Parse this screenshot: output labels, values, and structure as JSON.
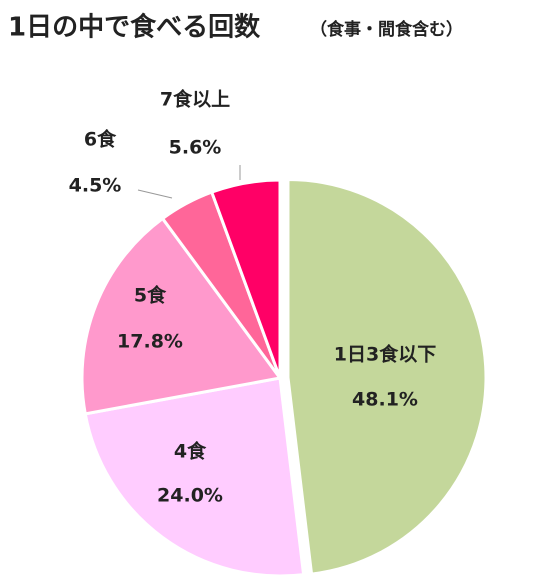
{
  "chart_data": {
    "type": "pie",
    "title": "1日の中で食べる回数",
    "subtitle": "（食事・間食含む）",
    "categories": [
      "1日3食以下",
      "4食",
      "5食",
      "6食",
      "7食以上"
    ],
    "values": [
      48.1,
      24.0,
      17.8,
      4.5,
      5.6
    ],
    "value_labels": [
      "48.1%",
      "24.0%",
      "17.8%",
      "4.5%",
      "5.6%"
    ],
    "colors": [
      "#c4d79b",
      "#ffccff",
      "#ff99cc",
      "#ff6699",
      "#ff0066"
    ]
  }
}
